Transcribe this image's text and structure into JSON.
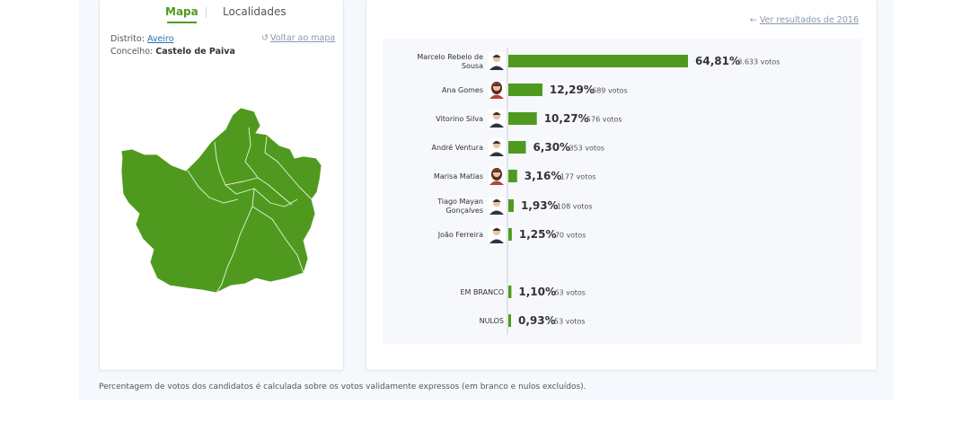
{
  "tabs": {
    "map_label": "Mapa",
    "list_label": "Localidades"
  },
  "location": {
    "distrito_label": "Distrito:",
    "distrito_value": "Aveiro",
    "concelho_label": "Concelho:",
    "concelho_value": "Castelo de Paiva",
    "back_link": "Voltar ao mapa"
  },
  "compare_link": "Ver resultados de 2016",
  "footnote": "Percentagem de votos dos candidatos é calculada sobre os votos validamente expressos (em branco e nulos excluídos).",
  "colors": {
    "accent": "#4f9a1e",
    "map_fill": "#4f9a1e",
    "link": "#2a6fb5"
  },
  "chart_data": {
    "type": "bar",
    "orientation": "horizontal",
    "xlim": [
      0,
      64.81
    ],
    "categories": [
      "Marcelo Rebelo de Sousa",
      "Ana Gomes",
      "Vitorino Silva",
      "André Ventura",
      "Marisa Matias",
      "Tiago Mayan Gonçalves",
      "João Ferreira",
      "EM BRANCO",
      "NULOS"
    ],
    "label_lines": [
      [
        "Marcelo Rebelo de",
        "Sousa"
      ],
      [
        "Ana Gomes"
      ],
      [
        "Vitorino Silva"
      ],
      [
        "André Ventura"
      ],
      [
        "Marisa Matias"
      ],
      [
        "Tiago Mayan",
        "Gonçalves"
      ],
      [
        "João Ferreira"
      ],
      [
        "EM BRANCO"
      ],
      [
        "NULOS"
      ]
    ],
    "values": [
      64.81,
      12.29,
      10.27,
      6.3,
      3.16,
      1.93,
      1.25,
      1.1,
      0.93
    ],
    "pct_labels": [
      "64,81%",
      "12,29%",
      "10,27%",
      "6,30%",
      "3,16%",
      "1,93%",
      "1,25%",
      "1,10%",
      "0,93%"
    ],
    "votes": [
      "3.633 votos",
      "689 votos",
      "576 votos",
      "353 votos",
      "177 votos",
      "108 votos",
      "70 votos",
      "63 votos",
      "53 votos"
    ],
    "has_avatar": [
      true,
      true,
      true,
      true,
      true,
      true,
      true,
      false,
      false
    ],
    "avatar_icons": [
      "male-avatar-icon",
      "female-avatar-icon",
      "male-avatar-icon",
      "male-avatar-icon",
      "female-avatar-icon",
      "male-avatar-icon",
      "male-avatar-icon"
    ],
    "bar_color": "#4f9a1e"
  }
}
